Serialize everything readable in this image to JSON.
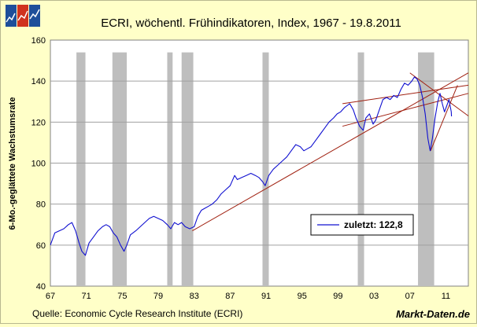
{
  "logo": {
    "colors": [
      "#1E4E9A",
      "#D0321E",
      "#1E4E9A"
    ]
  },
  "chart_data": {
    "type": "line",
    "title": "ECRI, wöchentl. Frühindikatoren, Index, 1967 - 19.8.2011",
    "ylabel": "6-Mo.-geglättete Wachstumsrate",
    "xlabel": "",
    "xlim": [
      1967,
      2013.5
    ],
    "ylim": [
      40,
      160
    ],
    "x_ticks": [
      {
        "value": 1967,
        "label": "67"
      },
      {
        "value": 1971,
        "label": "71"
      },
      {
        "value": 1975,
        "label": "75"
      },
      {
        "value": 1979,
        "label": "79"
      },
      {
        "value": 1983,
        "label": "83"
      },
      {
        "value": 1987,
        "label": "87"
      },
      {
        "value": 1991,
        "label": "91"
      },
      {
        "value": 1995,
        "label": "95"
      },
      {
        "value": 1999,
        "label": "99"
      },
      {
        "value": 2003,
        "label": "03"
      },
      {
        "value": 2007,
        "label": "07"
      },
      {
        "value": 2011,
        "label": "11"
      }
    ],
    "y_ticks": [
      40,
      60,
      80,
      100,
      120,
      140,
      160
    ],
    "grid": true,
    "recessions": [
      [
        1969.9,
        1970.9
      ],
      [
        1973.9,
        1975.5
      ],
      [
        1980.0,
        1980.6
      ],
      [
        1981.6,
        1982.9
      ],
      [
        1990.6,
        1991.3
      ],
      [
        2001.2,
        2001.9
      ],
      [
        2007.9,
        2009.7
      ]
    ],
    "series": [
      {
        "name": "zuletzt: 122,8",
        "color": "#1010D0",
        "points": [
          [
            1967.0,
            60
          ],
          [
            1967.5,
            66
          ],
          [
            1968.0,
            67
          ],
          [
            1968.5,
            68
          ],
          [
            1969.0,
            70
          ],
          [
            1969.4,
            71
          ],
          [
            1969.8,
            67
          ],
          [
            1970.2,
            61
          ],
          [
            1970.5,
            57
          ],
          [
            1970.9,
            55
          ],
          [
            1971.3,
            61
          ],
          [
            1971.8,
            64
          ],
          [
            1972.3,
            67
          ],
          [
            1972.8,
            69
          ],
          [
            1973.2,
            70
          ],
          [
            1973.6,
            69
          ],
          [
            1974.0,
            66
          ],
          [
            1974.4,
            64
          ],
          [
            1974.8,
            60
          ],
          [
            1975.2,
            57
          ],
          [
            1975.5,
            60
          ],
          [
            1975.9,
            65
          ],
          [
            1976.5,
            67
          ],
          [
            1977.0,
            69
          ],
          [
            1977.5,
            71
          ],
          [
            1978.0,
            73
          ],
          [
            1978.5,
            74
          ],
          [
            1979.0,
            73
          ],
          [
            1979.5,
            72
          ],
          [
            1980.0,
            70
          ],
          [
            1980.4,
            68
          ],
          [
            1980.8,
            71
          ],
          [
            1981.2,
            70
          ],
          [
            1981.6,
            71
          ],
          [
            1982.0,
            69
          ],
          [
            1982.5,
            68
          ],
          [
            1983.0,
            69
          ],
          [
            1983.4,
            74
          ],
          [
            1983.8,
            77
          ],
          [
            1984.2,
            78
          ],
          [
            1984.6,
            79
          ],
          [
            1985.0,
            80
          ],
          [
            1985.5,
            82
          ],
          [
            1986.0,
            85
          ],
          [
            1986.5,
            87
          ],
          [
            1987.0,
            89
          ],
          [
            1987.5,
            94
          ],
          [
            1987.8,
            92
          ],
          [
            1988.3,
            93
          ],
          [
            1988.8,
            94
          ],
          [
            1989.3,
            95
          ],
          [
            1989.8,
            94
          ],
          [
            1990.2,
            93
          ],
          [
            1990.6,
            91
          ],
          [
            1990.9,
            89
          ],
          [
            1991.3,
            94
          ],
          [
            1991.8,
            97
          ],
          [
            1992.3,
            99
          ],
          [
            1992.8,
            101
          ],
          [
            1993.3,
            103
          ],
          [
            1993.8,
            106
          ],
          [
            1994.3,
            109
          ],
          [
            1994.8,
            108
          ],
          [
            1995.2,
            106
          ],
          [
            1995.6,
            107
          ],
          [
            1996.0,
            108
          ],
          [
            1996.5,
            111
          ],
          [
            1997.0,
            114
          ],
          [
            1997.5,
            117
          ],
          [
            1998.0,
            120
          ],
          [
            1998.5,
            122
          ],
          [
            1998.9,
            124
          ],
          [
            1999.3,
            125
          ],
          [
            1999.7,
            127
          ],
          [
            2000.0,
            128
          ],
          [
            2000.3,
            129
          ],
          [
            2000.7,
            126
          ],
          [
            2001.0,
            122
          ],
          [
            2001.4,
            118
          ],
          [
            2001.8,
            116
          ],
          [
            2002.1,
            122
          ],
          [
            2002.5,
            124
          ],
          [
            2002.9,
            119
          ],
          [
            2003.2,
            121
          ],
          [
            2003.6,
            126
          ],
          [
            2004.0,
            131
          ],
          [
            2004.4,
            132
          ],
          [
            2004.8,
            131
          ],
          [
            2005.2,
            133
          ],
          [
            2005.6,
            132
          ],
          [
            2006.0,
            136
          ],
          [
            2006.4,
            139
          ],
          [
            2006.8,
            138
          ],
          [
            2007.2,
            140
          ],
          [
            2007.5,
            142
          ],
          [
            2007.8,
            141
          ],
          [
            2008.1,
            138
          ],
          [
            2008.4,
            132
          ],
          [
            2008.7,
            124
          ],
          [
            2009.0,
            112
          ],
          [
            2009.25,
            106
          ],
          [
            2009.5,
            112
          ],
          [
            2009.8,
            122
          ],
          [
            2010.1,
            130
          ],
          [
            2010.35,
            134
          ],
          [
            2010.6,
            129
          ],
          [
            2010.85,
            125
          ],
          [
            2011.1,
            128
          ],
          [
            2011.35,
            131
          ],
          [
            2011.6,
            125
          ],
          [
            2011.63,
            122.8
          ]
        ]
      }
    ],
    "trend_lines": [
      {
        "color": "#A02010",
        "points": [
          [
            1982.8,
            67
          ],
          [
            2013.5,
            144
          ]
        ]
      },
      {
        "color": "#A02010",
        "points": [
          [
            1999.5,
            129
          ],
          [
            2013.5,
            138
          ]
        ]
      },
      {
        "color": "#A02010",
        "points": [
          [
            1999.5,
            118
          ],
          [
            2013.5,
            134
          ]
        ]
      },
      {
        "color": "#A02010",
        "points": [
          [
            2009.3,
            106
          ],
          [
            2012.3,
            138
          ]
        ]
      },
      {
        "color": "#A02010",
        "points": [
          [
            2007.0,
            144
          ],
          [
            2013.5,
            123
          ]
        ]
      }
    ],
    "legend_position": "bottom-right"
  },
  "footer": {
    "source": "Quelle: Economic Cycle Research Institute (ECRI)",
    "brand": "Markt-Daten.de"
  }
}
